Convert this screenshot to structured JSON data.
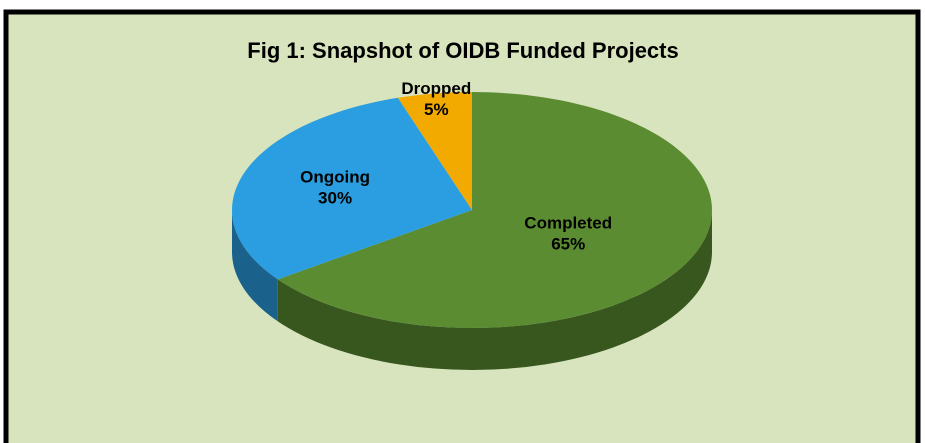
{
  "chart_data": {
    "type": "pie",
    "title": "Fig 1: Snapshot of OIDB Funded Projects",
    "categories": [
      "Completed",
      "Ongoing",
      "Dropped"
    ],
    "values": [
      65,
      30,
      5
    ],
    "value_labels": [
      "65%",
      "30%",
      "5%"
    ],
    "colors": [
      "#5b8c32",
      "#2a9ee0",
      "#f2a900"
    ]
  }
}
